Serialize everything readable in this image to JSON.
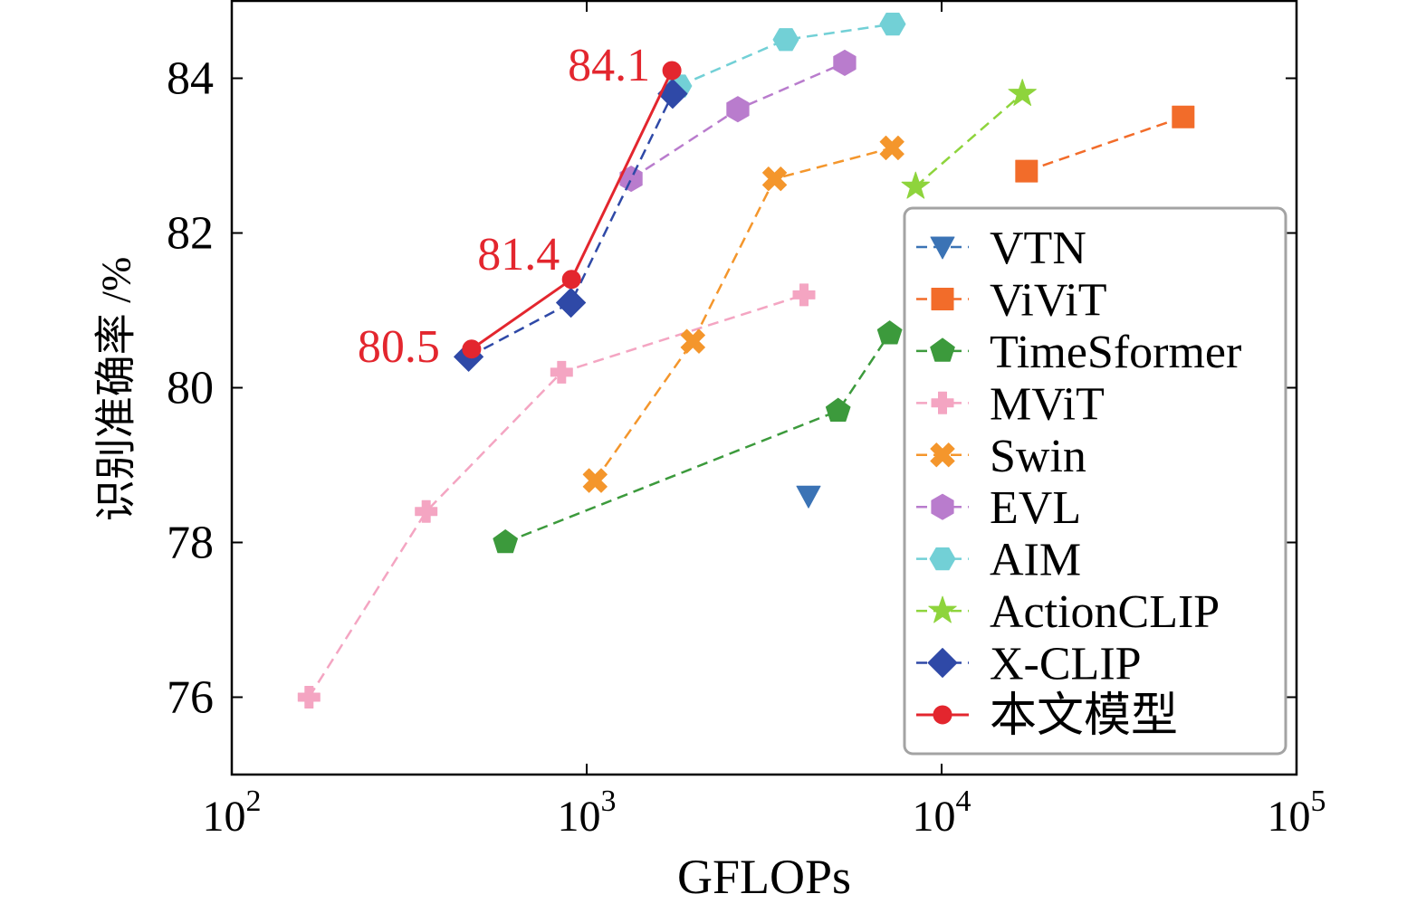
{
  "chart_data": {
    "type": "line",
    "xlabel": "GFLOPs",
    "ylabel": "识别准确率 /%",
    "xscale": "log",
    "xlim": [
      100,
      100000
    ],
    "ylim": [
      75,
      85
    ],
    "xticks": [
      {
        "value": 100,
        "base": "10",
        "exp": "2"
      },
      {
        "value": 1000,
        "base": "10",
        "exp": "3"
      },
      {
        "value": 10000,
        "base": "10",
        "exp": "4"
      },
      {
        "value": 100000,
        "base": "10",
        "exp": "5"
      }
    ],
    "yticks": [
      76,
      78,
      80,
      82,
      84
    ],
    "grid": false,
    "legend": {
      "placement": "lower right"
    },
    "series": [
      {
        "name": "VTN",
        "color": "#3b73b5",
        "marker": "triangle-down",
        "linestyle": "dashed",
        "points": [
          [
            4218,
            78.6
          ]
        ]
      },
      {
        "name": "ViViT",
        "color": "#f26c2a",
        "marker": "square",
        "linestyle": "dashed",
        "points": [
          [
            17352,
            82.8
          ],
          [
            47940,
            83.5
          ]
        ]
      },
      {
        "name": "TimeSformer",
        "color": "#3c9a3c",
        "marker": "pentagon",
        "linestyle": "dashed",
        "points": [
          [
            590,
            78.0
          ],
          [
            5110,
            79.7
          ],
          [
            7140,
            80.7
          ]
        ]
      },
      {
        "name": "MViT",
        "color": "#f4a5c2",
        "marker": "plus",
        "linestyle": "dashed",
        "points": [
          [
            165,
            76.0
          ],
          [
            353,
            78.4
          ],
          [
            850,
            80.2
          ],
          [
            4095,
            81.2
          ]
        ]
      },
      {
        "name": "Swin",
        "color": "#f4962c",
        "marker": "x",
        "linestyle": "dashed",
        "points": [
          [
            1056,
            78.8
          ],
          [
            1992,
            80.6
          ],
          [
            3384,
            82.7
          ],
          [
            7248,
            83.1
          ]
        ]
      },
      {
        "name": "EVL",
        "color": "#b97ccd",
        "marker": "hexagon",
        "linestyle": "dashed",
        "points": [
          [
            1334,
            82.7
          ],
          [
            2666,
            83.6
          ],
          [
            5333,
            84.2
          ]
        ]
      },
      {
        "name": "AIM",
        "color": "#72d0d6",
        "marker": "hexagon-flat",
        "linestyle": "dashed",
        "points": [
          [
            1820,
            83.9
          ],
          [
            3640,
            84.5
          ],
          [
            7280,
            84.7
          ]
        ]
      },
      {
        "name": "ActionCLIP",
        "color": "#8ed43c",
        "marker": "star",
        "linestyle": "dashed",
        "points": [
          [
            8448,
            82.6
          ],
          [
            16890,
            83.8
          ]
        ]
      },
      {
        "name": "X-CLIP",
        "color": "#2f49a7",
        "marker": "diamond",
        "linestyle": "dashed",
        "points": [
          [
            465,
            80.4
          ],
          [
            903,
            81.1
          ],
          [
            1746,
            83.8
          ]
        ]
      },
      {
        "name": "本文模型",
        "color": "#e3262e",
        "marker": "circle",
        "linestyle": "solid",
        "points": [
          [
            474,
            80.5
          ],
          [
            906,
            81.4
          ],
          [
            1738,
            84.1
          ]
        ]
      }
    ],
    "annotations": [
      {
        "text": "80.5",
        "x": 474,
        "y": 80.5,
        "color": "#e3262e"
      },
      {
        "text": "81.4",
        "x": 906,
        "y": 81.4,
        "color": "#e3262e"
      },
      {
        "text": "84.1",
        "x": 1738,
        "y": 84.1,
        "color": "#e3262e"
      }
    ]
  }
}
